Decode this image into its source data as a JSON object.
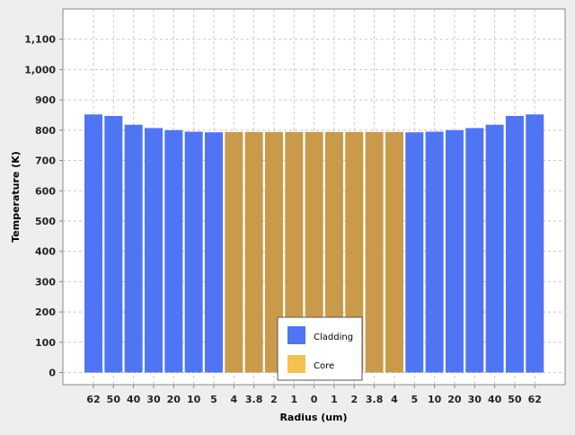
{
  "chart_data": {
    "type": "bar",
    "xlabel": "Radius (um)",
    "ylabel": "Temperature (K)",
    "ylim": [
      -40,
      1200
    ],
    "yticks": [
      0,
      100,
      200,
      300,
      400,
      500,
      600,
      700,
      800,
      900,
      1000,
      1100
    ],
    "ytick_labels": [
      "0",
      "100",
      "200",
      "300",
      "400",
      "500",
      "600",
      "700",
      "800",
      "900",
      "1,000",
      "1,100"
    ],
    "grid": true,
    "legend_position": "bottom-center",
    "categories": [
      "62",
      "50",
      "40",
      "30",
      "20",
      "10",
      "5",
      "4",
      "3.8",
      "2",
      "1",
      "0",
      "1",
      "2",
      "3.8",
      "4",
      "5",
      "10",
      "20",
      "30",
      "40",
      "50",
      "62"
    ],
    "values": [
      852,
      847,
      818,
      807,
      800,
      795,
      793,
      794,
      794,
      794,
      794,
      794,
      794,
      794,
      794,
      794,
      793,
      795,
      800,
      807,
      818,
      847,
      852
    ],
    "groups": [
      "Cladding",
      "Cladding",
      "Cladding",
      "Cladding",
      "Cladding",
      "Cladding",
      "Cladding",
      "Core",
      "Core",
      "Core",
      "Core",
      "Core",
      "Core",
      "Core",
      "Core",
      "Core",
      "Cladding",
      "Cladding",
      "Cladding",
      "Cladding",
      "Cladding",
      "Cladding",
      "Cladding"
    ],
    "series": [
      {
        "name": "Cladding",
        "color": "#4f75f5"
      },
      {
        "name": "Core",
        "color": "#c99a4a",
        "legend_color": "#f5c250"
      }
    ]
  }
}
